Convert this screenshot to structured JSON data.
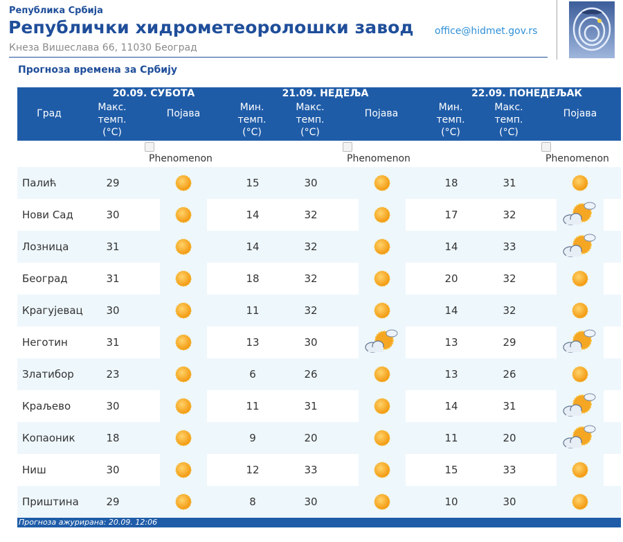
{
  "header": {
    "republic": "Република Србија",
    "title": "Републички хидрометеоролошки завод",
    "address": "Кнеза Вишеслава 66, 11030 Београд",
    "email": "office@hidmet.gov.rs"
  },
  "subtitle": "Прогноза времена за Србију",
  "table": {
    "city_header": "Град",
    "days": [
      {
        "date": "20.09. СУБОТА",
        "max": "Макс. темп. (°C)",
        "phenomenon": "Појава"
      },
      {
        "date": "21.09. НЕДЕЉА",
        "min": "Мин. темп. (°C)",
        "max": "Макс. темп. (°C)",
        "phenomenon": "Појава"
      },
      {
        "date": "22.09. ПОНЕДЕЉАК",
        "min": "Мин. темп. (°C)",
        "max": "Макс. темп. (°C)",
        "phenomenon": "Појава"
      }
    ],
    "phenomenon_alt": "Phenomenon",
    "rows": [
      {
        "city": "Палић",
        "d1_max": "29",
        "d1_icon": "sunny",
        "d2_min": "15",
        "d2_max": "30",
        "d2_icon": "sunny",
        "d3_min": "18",
        "d3_max": "31",
        "d3_icon": "sunny"
      },
      {
        "city": "Нови Сад",
        "d1_max": "30",
        "d1_icon": "sunny",
        "d2_min": "14",
        "d2_max": "32",
        "d2_icon": "sunny",
        "d3_min": "17",
        "d3_max": "32",
        "d3_icon": "partly-cloudy"
      },
      {
        "city": "Лозница",
        "d1_max": "31",
        "d1_icon": "sunny",
        "d2_min": "14",
        "d2_max": "32",
        "d2_icon": "sunny",
        "d3_min": "14",
        "d3_max": "33",
        "d3_icon": "partly-cloudy"
      },
      {
        "city": "Београд",
        "d1_max": "31",
        "d1_icon": "sunny",
        "d2_min": "18",
        "d2_max": "32",
        "d2_icon": "sunny",
        "d3_min": "20",
        "d3_max": "32",
        "d3_icon": "sunny"
      },
      {
        "city": "Крагујевац",
        "d1_max": "30",
        "d1_icon": "sunny",
        "d2_min": "11",
        "d2_max": "32",
        "d2_icon": "sunny",
        "d3_min": "14",
        "d3_max": "32",
        "d3_icon": "sunny"
      },
      {
        "city": "Неготин",
        "d1_max": "31",
        "d1_icon": "sunny",
        "d2_min": "13",
        "d2_max": "30",
        "d2_icon": "partly-cloudy",
        "d3_min": "13",
        "d3_max": "29",
        "d3_icon": "partly-cloudy"
      },
      {
        "city": "Златибор",
        "d1_max": "23",
        "d1_icon": "sunny",
        "d2_min": "6",
        "d2_max": "26",
        "d2_icon": "sunny",
        "d3_min": "13",
        "d3_max": "26",
        "d3_icon": "sunny"
      },
      {
        "city": "Краљево",
        "d1_max": "30",
        "d1_icon": "sunny",
        "d2_min": "11",
        "d2_max": "31",
        "d2_icon": "sunny",
        "d3_min": "14",
        "d3_max": "31",
        "d3_icon": "partly-cloudy"
      },
      {
        "city": "Копаоник",
        "d1_max": "18",
        "d1_icon": "sunny",
        "d2_min": "9",
        "d2_max": "20",
        "d2_icon": "sunny",
        "d3_min": "11",
        "d3_max": "20",
        "d3_icon": "partly-cloudy"
      },
      {
        "city": "Ниш",
        "d1_max": "30",
        "d1_icon": "sunny",
        "d2_min": "12",
        "d2_max": "33",
        "d2_icon": "sunny",
        "d3_min": "15",
        "d3_max": "33",
        "d3_icon": "sunny"
      },
      {
        "city": "Приштина",
        "d1_max": "29",
        "d1_icon": "sunny",
        "d2_min": "8",
        "d2_max": "30",
        "d2_icon": "sunny",
        "d3_min": "10",
        "d3_max": "30",
        "d3_icon": "sunny"
      }
    ]
  },
  "footer": {
    "updated": "Прогноза ажурирана:  20.09.  12:06"
  },
  "colors": {
    "brand": "#1f5ca8",
    "row_alt": "#eef7fc",
    "sun": "#f5a623",
    "email": "#2e8fd6"
  }
}
